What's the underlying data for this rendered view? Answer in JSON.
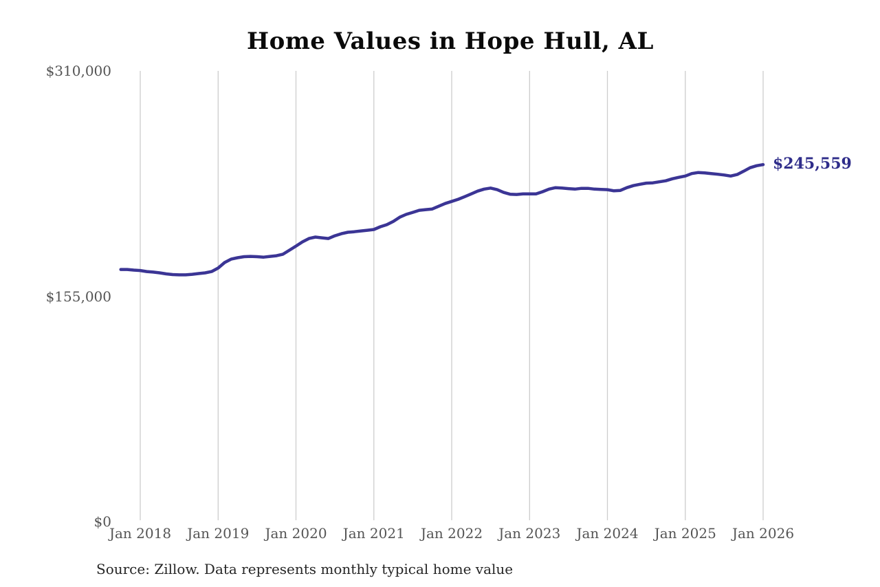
{
  "chart": {
    "title": "Home Values in Hope Hull, AL",
    "last_value_label": "$245,559",
    "source": "Source: Zillow. Data represents monthly typical home value"
  },
  "chart_data": {
    "type": "line",
    "title": "Home Values in Hope Hull, AL",
    "series_name": "Monthly typical home value",
    "x_start_month": "2017-10",
    "x_end_month": "2026-01",
    "x_tick_labels": [
      "Jan 2018",
      "Jan 2019",
      "Jan 2020",
      "Jan 2021",
      "Jan 2022",
      "Jan 2023",
      "Jan 2024",
      "Jan 2025",
      "Jan 2026"
    ],
    "first_tick_month_index": 3,
    "y_ticks": [
      {
        "label": "$0",
        "value": 0
      },
      {
        "label": "$155,000",
        "value": 155000
      },
      {
        "label": "$310,000",
        "value": 310000
      }
    ],
    "ylim": [
      0,
      310000
    ],
    "grid": "vertical-only",
    "legend": "none",
    "line_color": "#3b3595",
    "grid_color": "#cccccc",
    "annotation_color": "#2f2d8a",
    "last_value": 245559,
    "last_value_label": "$245,559",
    "values": [
      173400,
      173400,
      173000,
      172700,
      172000,
      171600,
      171100,
      170400,
      169900,
      169700,
      169700,
      170100,
      170600,
      171100,
      172000,
      174400,
      178200,
      180500,
      181500,
      182200,
      182400,
      182200,
      181900,
      182400,
      182900,
      183900,
      186700,
      189500,
      192400,
      194700,
      195700,
      195200,
      194700,
      196600,
      198000,
      199000,
      199400,
      199900,
      200400,
      200900,
      202800,
      204200,
      206500,
      209400,
      211300,
      212700,
      214100,
      214600,
      215000,
      216900,
      218800,
      220200,
      221700,
      223500,
      225400,
      227300,
      228700,
      229400,
      228300,
      226400,
      225200,
      225000,
      225400,
      225400,
      225400,
      226900,
      228700,
      229700,
      229400,
      229000,
      228700,
      229200,
      229200,
      228700,
      228500,
      228300,
      227500,
      227800,
      229700,
      231100,
      232000,
      232800,
      233000,
      233700,
      234400,
      235800,
      236800,
      237700,
      239400,
      240100,
      239800,
      239400,
      238900,
      238400,
      237700,
      238700,
      241000,
      243400,
      244800,
      245559
    ]
  }
}
